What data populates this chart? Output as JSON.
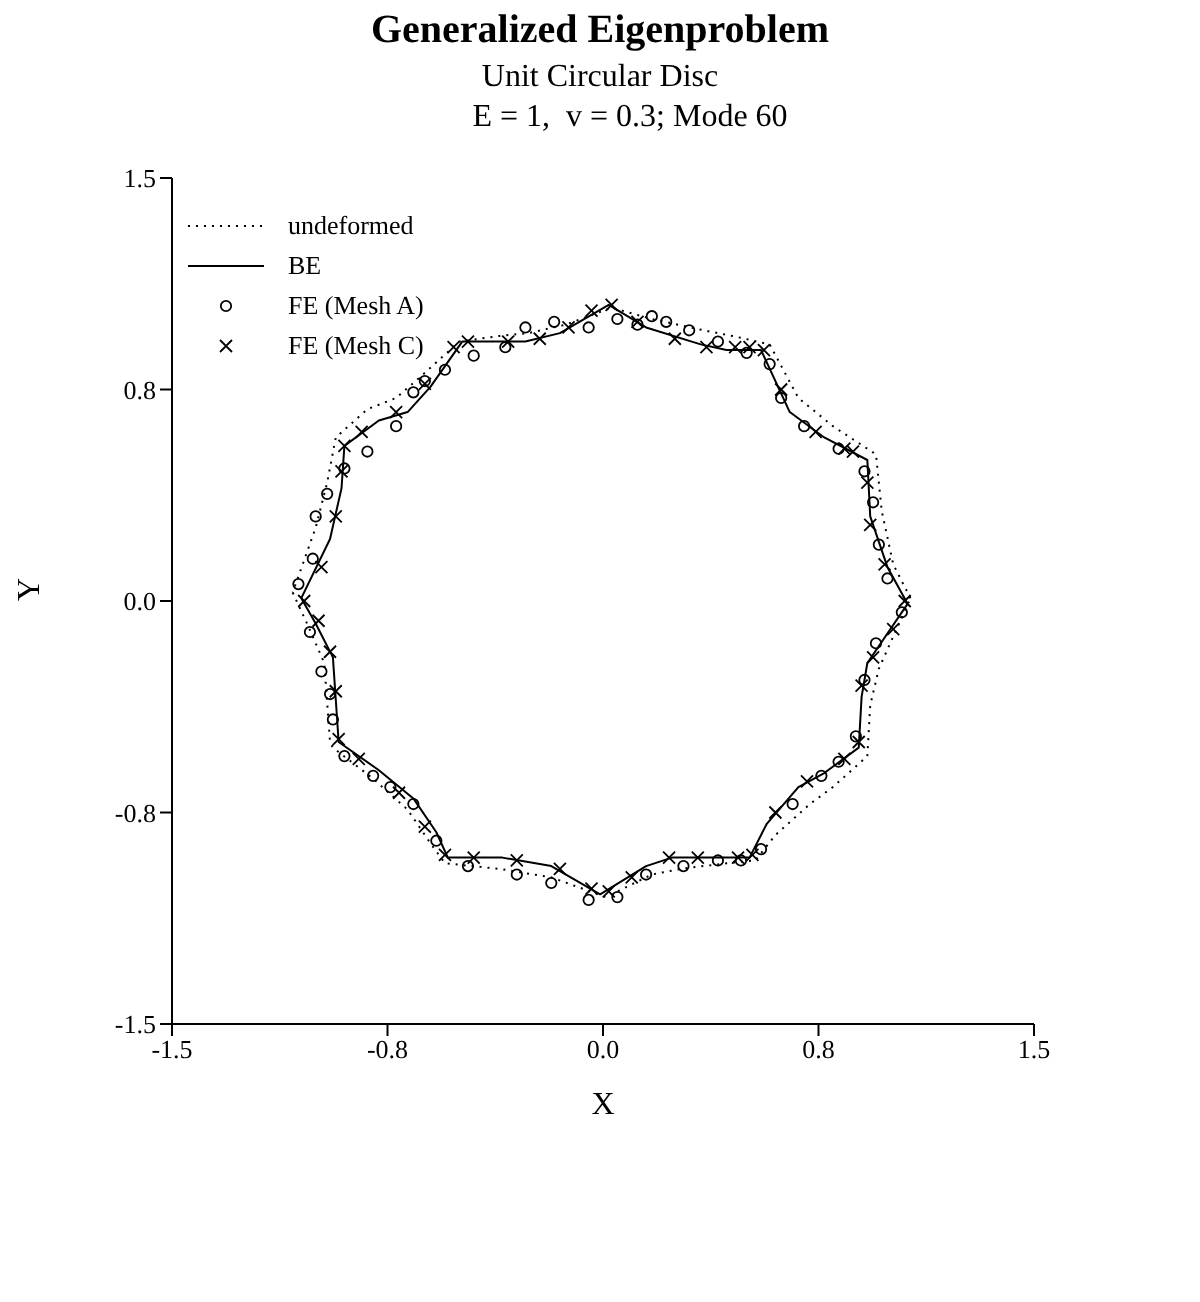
{
  "chart_data": {
    "type": "scatter",
    "title": "Generalized Eigenproblem",
    "subtitle": "Unit Circular Disc",
    "annotations": [
      "E = 1,  v = 0.3; Mode 60"
    ],
    "xlabel": "X",
    "ylabel": "Y",
    "xlim": [
      -1.5,
      1.5
    ],
    "ylim": [
      -1.5,
      1.5
    ],
    "xticks": [
      -1.5,
      {
        "value": -0.75,
        "label": "-0.8"
      },
      {
        "value": 0,
        "label": "0.0"
      },
      {
        "value": 0.75,
        "label": "0.8"
      },
      1.5
    ],
    "yticks": [
      -1.5,
      {
        "value": -0.75,
        "label": "-0.8"
      },
      {
        "value": 0,
        "label": "0.0"
      },
      {
        "value": 0.75,
        "label": "0.8"
      },
      1.5
    ],
    "legend": "top left",
    "series": [
      {
        "name": "undeformed",
        "type": "line",
        "line_style": "dotted",
        "color": "#000000",
        "x": [
          1.07,
          1.01,
          0.97,
          0.95,
          0.8,
          0.68,
          0.58,
          0.45,
          0.35,
          0.17,
          0.03,
          -0.13,
          -0.26,
          -0.36,
          -0.5,
          -0.63,
          -0.72,
          -0.82,
          -0.93,
          -0.96,
          -1.0,
          -1.08
        ],
        "values": [
          0.01,
          0.13,
          0.32,
          0.52,
          0.62,
          0.72,
          0.91,
          0.94,
          0.96,
          1.0,
          1.04,
          0.98,
          0.95,
          0.94,
          0.92,
          0.8,
          0.72,
          0.68,
          0.58,
          0.42,
          0.26,
          0.03
        ]
      },
      {
        "type": "line",
        "line_style": "dotted",
        "color": "#000000",
        "x": [
          -1.08,
          -1.03,
          -0.97,
          -0.95,
          -0.94,
          -0.8,
          -0.68,
          -0.6,
          -0.55,
          -0.36,
          -0.18,
          0.01,
          0.17,
          0.27,
          0.43,
          0.53,
          0.6,
          0.72,
          0.8,
          0.92,
          0.93,
          0.96,
          1.07
        ],
        "values": [
          0.03,
          -0.08,
          -0.22,
          -0.5,
          -0.52,
          -0.63,
          -0.74,
          -0.86,
          -0.93,
          -0.95,
          -0.98,
          -1.05,
          -0.97,
          -0.95,
          -0.93,
          -0.92,
          -0.83,
          -0.72,
          -0.66,
          -0.55,
          -0.37,
          -0.24,
          0.01
        ]
      },
      {
        "name": "BE",
        "type": "line",
        "line_style": "solid",
        "color": "#000000",
        "x": [
          1.06,
          0.99,
          0.93,
          0.92,
          0.77,
          0.65,
          0.55,
          0.43,
          0.34,
          0.15,
          0.02,
          -0.15,
          -0.27,
          -0.36,
          -0.49,
          -0.6,
          -0.68,
          -0.78,
          -0.9,
          -0.91,
          -0.95,
          -1.05
        ],
        "values": [
          -0.01,
          0.12,
          0.3,
          0.5,
          0.58,
          0.67,
          0.89,
          0.89,
          0.91,
          0.97,
          1.05,
          0.95,
          0.92,
          0.92,
          0.92,
          0.76,
          0.67,
          0.64,
          0.55,
          0.4,
          0.22,
          0.01
        ]
      },
      {
        "type": "line",
        "line_style": "solid",
        "color": "#000000",
        "x": [
          -1.05,
          -1.0,
          -0.94,
          -0.92,
          -0.78,
          -0.66,
          -0.58,
          -0.54,
          -0.35,
          -0.18,
          -0.01,
          0.15,
          0.24,
          0.41,
          0.51,
          0.57,
          0.68,
          0.77,
          0.89,
          0.9,
          0.92,
          1.06
        ],
        "values": [
          0.01,
          -0.08,
          -0.2,
          -0.5,
          -0.6,
          -0.7,
          -0.82,
          -0.91,
          -0.91,
          -0.94,
          -1.04,
          -0.94,
          -0.91,
          -0.91,
          -0.91,
          -0.79,
          -0.66,
          -0.61,
          -0.52,
          -0.34,
          -0.22,
          -0.01
        ]
      },
      {
        "name": "FE (Mesh A)",
        "type": "scatter",
        "marker": "circle",
        "color": "#000000",
        "x": [
          1.04,
          0.99,
          0.96,
          0.94,
          0.91,
          0.82,
          0.7,
          0.62,
          0.58,
          0.5,
          0.4,
          0.3,
          0.22,
          0.17,
          0.12,
          0.05,
          -0.05,
          -0.17,
          -0.27,
          -0.34,
          -0.45,
          -0.55,
          -0.62,
          -0.66,
          -0.72,
          -0.82,
          -0.9,
          -0.96,
          -1.0,
          -1.01,
          -1.06,
          -1.02,
          -0.98,
          -0.95,
          -0.94,
          -0.9,
          -0.8,
          -0.74,
          -0.66,
          -0.58,
          -0.47,
          -0.3,
          -0.18,
          -0.05,
          0.05,
          0.15,
          0.28,
          0.4,
          0.48,
          0.55,
          0.66,
          0.76,
          0.82,
          0.88,
          0.91,
          0.95
        ],
        "values": [
          -0.04,
          0.08,
          0.2,
          0.35,
          0.46,
          0.54,
          0.62,
          0.72,
          0.84,
          0.88,
          0.92,
          0.96,
          0.99,
          1.01,
          0.98,
          1.0,
          0.97,
          0.99,
          0.97,
          0.9,
          0.87,
          0.82,
          0.78,
          0.74,
          0.62,
          0.53,
          0.47,
          0.38,
          0.3,
          0.15,
          0.06,
          -0.11,
          -0.25,
          -0.33,
          -0.42,
          -0.55,
          -0.62,
          -0.66,
          -0.72,
          -0.85,
          -0.94,
          -0.97,
          -1.0,
          -1.06,
          -1.05,
          -0.97,
          -0.94,
          -0.92,
          -0.92,
          -0.88,
          -0.72,
          -0.62,
          -0.57,
          -0.48,
          -0.28,
          -0.15
        ]
      },
      {
        "name": "FE (Mesh C)",
        "type": "scatter",
        "marker": "cross",
        "color": "#000000",
        "x": [
          1.05,
          0.98,
          0.93,
          0.92,
          0.87,
          0.84,
          0.74,
          0.62,
          0.56,
          0.51,
          0.46,
          0.36,
          0.25,
          0.12,
          0.03,
          -0.04,
          -0.12,
          -0.22,
          -0.33,
          -0.47,
          -0.52,
          -0.62,
          -0.72,
          -0.84,
          -0.9,
          -0.91,
          -0.93,
          -0.98,
          -1.04,
          -0.99,
          -0.95,
          -0.93,
          -0.92,
          -0.85,
          -0.71,
          -0.62,
          -0.55,
          -0.45,
          -0.3,
          -0.15,
          -0.04,
          0.02,
          0.1,
          0.23,
          0.33,
          0.47,
          0.52,
          0.6,
          0.71,
          0.84,
          0.89,
          0.9,
          0.94,
          1.01
        ],
        "values": [
          0.0,
          0.13,
          0.27,
          0.42,
          0.53,
          0.54,
          0.6,
          0.75,
          0.89,
          0.9,
          0.9,
          0.9,
          0.93,
          0.99,
          1.05,
          1.03,
          0.97,
          0.93,
          0.92,
          0.92,
          0.9,
          0.77,
          0.67,
          0.6,
          0.55,
          0.46,
          0.3,
          0.12,
          0.0,
          -0.07,
          -0.18,
          -0.32,
          -0.49,
          -0.56,
          -0.68,
          -0.8,
          -0.9,
          -0.91,
          -0.92,
          -0.95,
          -1.02,
          -1.03,
          -0.98,
          -0.91,
          -0.91,
          -0.91,
          -0.9,
          -0.75,
          -0.64,
          -0.56,
          -0.5,
          -0.3,
          -0.2,
          -0.1
        ]
      }
    ]
  }
}
